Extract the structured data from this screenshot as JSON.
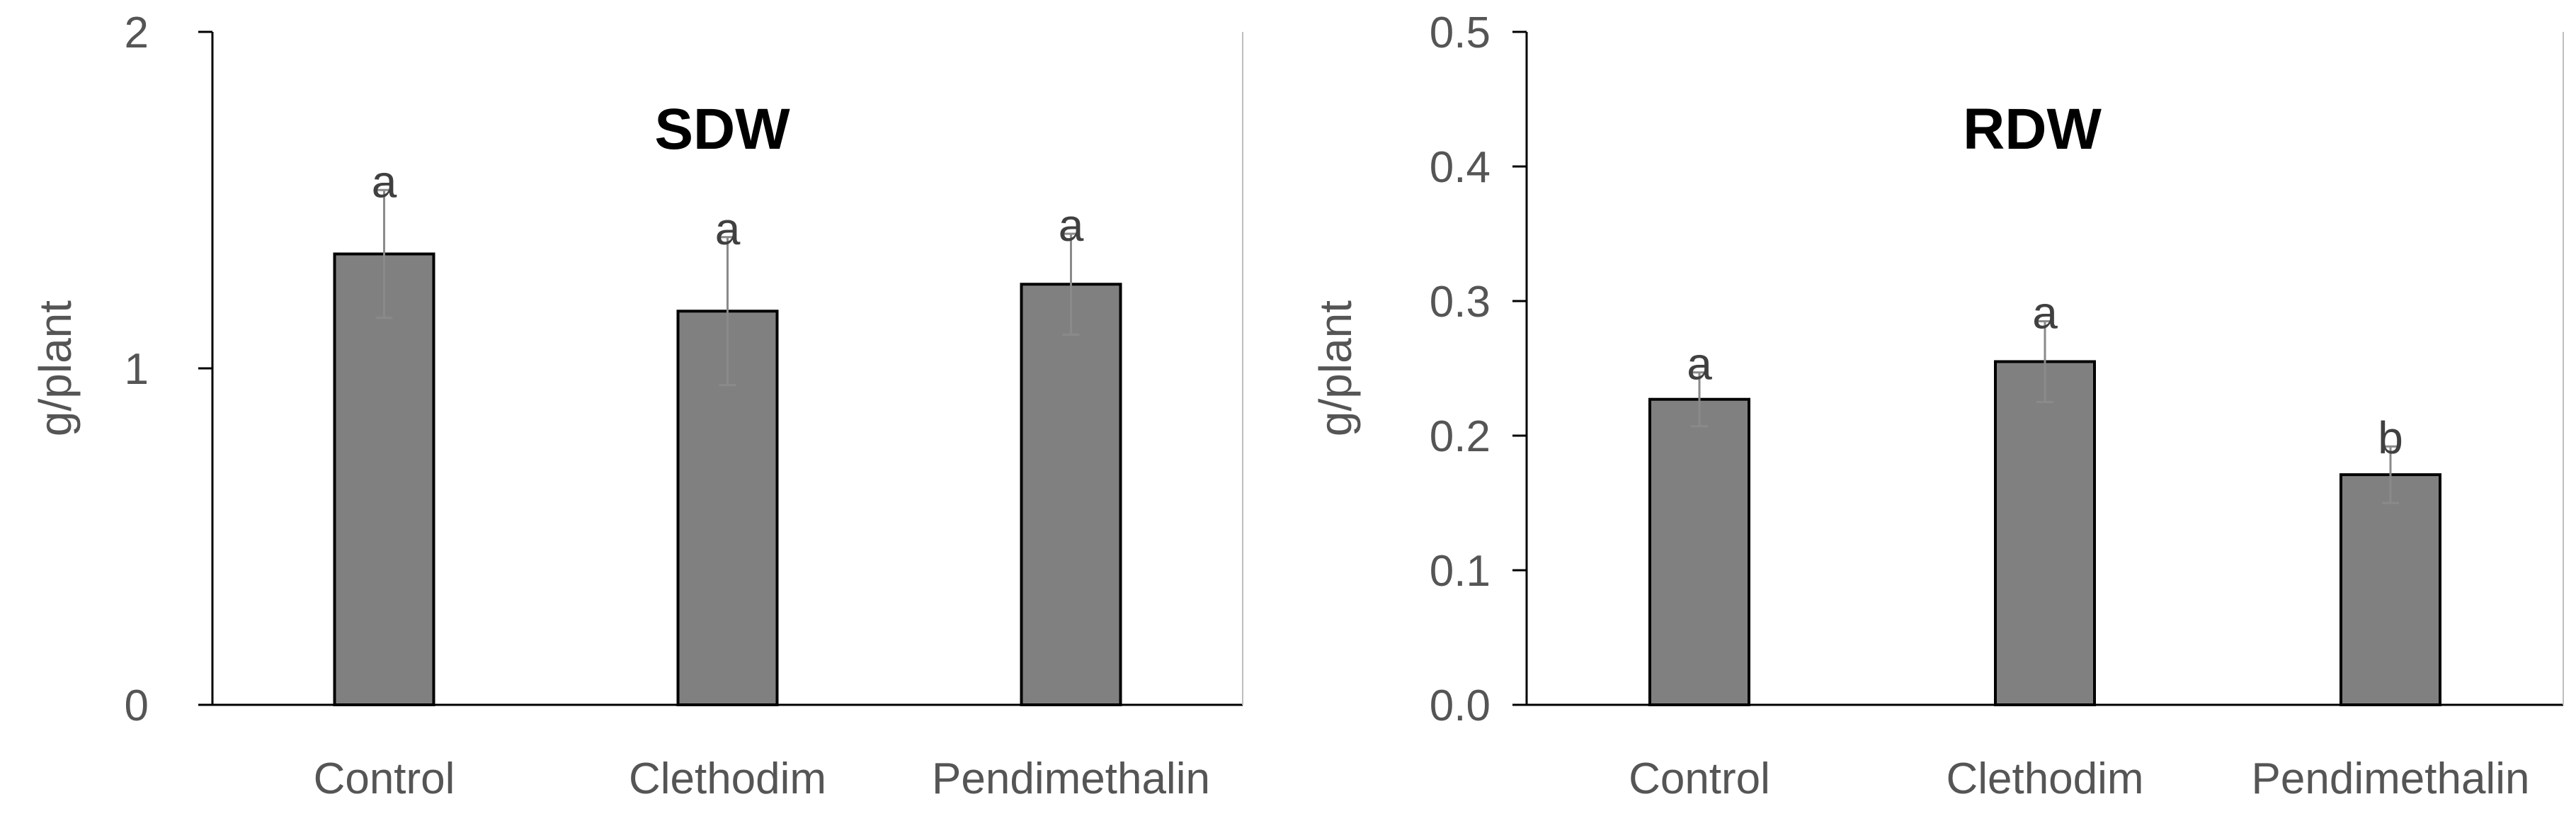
{
  "chart_data": [
    {
      "type": "bar",
      "title": "SDW",
      "ylabel": "g/plant",
      "xlabel": "",
      "categories": [
        "Control",
        "Clethodim",
        "Pendimethalin"
      ],
      "values": [
        1.34,
        1.17,
        1.25
      ],
      "errors": [
        0.19,
        0.22,
        0.15
      ],
      "significance": [
        "a",
        "a",
        "a"
      ],
      "ylim": [
        0,
        2
      ],
      "yticks": [
        "0",
        "1",
        "2"
      ],
      "ytick_values": [
        0,
        1,
        2
      ],
      "bar_color": "#808080",
      "grid": false
    },
    {
      "type": "bar",
      "title": "RDW",
      "ylabel": "g/plant",
      "xlabel": "",
      "categories": [
        "Control",
        "Clethodim",
        "Pendimethalin"
      ],
      "values": [
        0.227,
        0.255,
        0.171
      ],
      "errors": [
        0.02,
        0.03,
        0.021
      ],
      "significance": [
        "a",
        "a",
        "b"
      ],
      "ylim": [
        0,
        0.5
      ],
      "yticks": [
        "0.0",
        "0.1",
        "0.2",
        "0.3",
        "0.4",
        "0.5"
      ],
      "ytick_values": [
        0,
        0.1,
        0.2,
        0.3,
        0.4,
        0.5
      ],
      "bar_color": "#808080",
      "grid": false
    }
  ]
}
